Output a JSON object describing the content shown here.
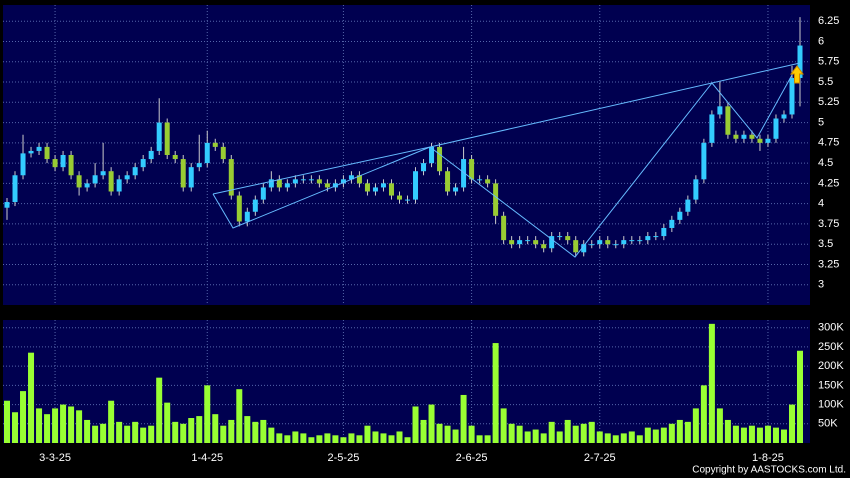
{
  "chart_data": [
    {
      "type": "candlestick",
      "up_color": "#33ccff",
      "down_color": "#99cc33",
      "wick_color": "#cccccc",
      "ylim": [
        2.75,
        6.45
      ],
      "yticks": [
        3,
        3.25,
        3.5,
        3.75,
        4,
        4.25,
        4.5,
        4.75,
        5,
        5.25,
        5.5,
        5.75,
        6,
        6.25
      ],
      "grid": true,
      "open": [
        3.95,
        4.02,
        4.35,
        4.62,
        4.65,
        4.7,
        4.55,
        4.45,
        4.6,
        4.35,
        4.2,
        4.25,
        4.35,
        4.4,
        4.15,
        4.3,
        4.35,
        4.45,
        4.55,
        4.65,
        5.0,
        4.6,
        4.55,
        4.2,
        4.45,
        4.5,
        4.75,
        4.7,
        4.55,
        4.1,
        3.78,
        3.9,
        4.05,
        4.2,
        4.3,
        4.2,
        4.25,
        4.3,
        4.3,
        4.3,
        4.25,
        4.2,
        4.25,
        4.3,
        4.35,
        4.25,
        4.15,
        4.2,
        4.25,
        4.1,
        4.05,
        4.05,
        4.4,
        4.5,
        4.7,
        4.4,
        4.15,
        4.2,
        4.55,
        4.3,
        4.3,
        4.25,
        3.85,
        3.55,
        3.5,
        3.55,
        3.55,
        3.5,
        3.45,
        3.6,
        3.6,
        3.55,
        3.4,
        3.5,
        3.5,
        3.55,
        3.5,
        3.5,
        3.55,
        3.55,
        3.55,
        3.6,
        3.6,
        3.7,
        3.8,
        3.9,
        4.05,
        4.3,
        4.75,
        5.1,
        5.2,
        4.85,
        4.8,
        4.85,
        4.8,
        4.75,
        4.8,
        5.05,
        5.1,
        5.55
      ],
      "close": [
        4.02,
        4.35,
        4.62,
        4.65,
        4.7,
        4.55,
        4.45,
        4.6,
        4.35,
        4.2,
        4.25,
        4.35,
        4.4,
        4.15,
        4.3,
        4.35,
        4.45,
        4.55,
        4.65,
        5.0,
        4.6,
        4.55,
        4.2,
        4.45,
        4.5,
        4.75,
        4.7,
        4.55,
        4.1,
        3.78,
        3.9,
        4.05,
        4.2,
        4.3,
        4.2,
        4.25,
        4.3,
        4.3,
        4.3,
        4.25,
        4.2,
        4.25,
        4.3,
        4.35,
        4.25,
        4.15,
        4.2,
        4.25,
        4.1,
        4.05,
        4.05,
        4.4,
        4.5,
        4.7,
        4.4,
        4.15,
        4.2,
        4.55,
        4.3,
        4.3,
        4.25,
        3.85,
        3.55,
        3.5,
        3.55,
        3.55,
        3.5,
        3.45,
        3.6,
        3.6,
        3.55,
        3.4,
        3.5,
        3.5,
        3.55,
        3.5,
        3.5,
        3.55,
        3.55,
        3.55,
        3.6,
        3.6,
        3.7,
        3.8,
        3.9,
        4.05,
        4.3,
        4.75,
        5.1,
        5.2,
        4.85,
        4.8,
        4.85,
        4.8,
        4.75,
        4.8,
        5.05,
        5.1,
        5.55,
        5.95
      ],
      "high": [
        4.07,
        4.4,
        4.85,
        4.7,
        4.75,
        4.75,
        4.6,
        4.65,
        4.65,
        4.4,
        4.3,
        4.5,
        4.75,
        4.45,
        4.35,
        4.4,
        4.5,
        4.6,
        4.7,
        5.3,
        5.05,
        4.65,
        4.6,
        4.5,
        4.85,
        4.9,
        4.8,
        4.75,
        4.6,
        4.15,
        3.95,
        4.1,
        4.25,
        4.4,
        4.35,
        4.3,
        4.35,
        4.35,
        4.35,
        4.35,
        4.3,
        4.3,
        4.35,
        4.4,
        4.4,
        4.3,
        4.25,
        4.3,
        4.3,
        4.15,
        4.1,
        4.45,
        4.55,
        4.75,
        4.75,
        4.45,
        4.25,
        4.7,
        4.6,
        4.35,
        4.35,
        4.3,
        3.9,
        3.6,
        3.6,
        3.6,
        3.6,
        3.55,
        3.65,
        3.65,
        3.65,
        3.6,
        3.55,
        3.55,
        3.6,
        3.6,
        3.55,
        3.6,
        3.6,
        3.6,
        3.65,
        3.65,
        3.75,
        3.85,
        3.95,
        4.1,
        4.35,
        4.8,
        5.15,
        5.5,
        5.25,
        4.9,
        4.9,
        4.9,
        4.85,
        4.85,
        5.1,
        5.15,
        5.7,
        6.3
      ],
      "low": [
        3.8,
        3.97,
        4.3,
        4.57,
        4.6,
        4.5,
        4.4,
        4.4,
        4.3,
        4.1,
        4.15,
        4.2,
        4.3,
        4.1,
        4.1,
        4.25,
        4.3,
        4.4,
        4.5,
        4.6,
        4.55,
        4.5,
        4.15,
        4.15,
        4.4,
        4.45,
        4.65,
        4.5,
        4.05,
        3.72,
        3.72,
        3.85,
        4.0,
        4.15,
        4.15,
        4.15,
        4.2,
        4.25,
        4.25,
        4.2,
        4.15,
        4.15,
        4.2,
        4.25,
        4.2,
        4.1,
        4.1,
        4.15,
        4.05,
        4.0,
        4.0,
        4.0,
        4.35,
        4.45,
        4.35,
        4.1,
        4.1,
        4.15,
        4.25,
        4.25,
        4.2,
        3.75,
        3.5,
        3.45,
        3.45,
        3.5,
        3.45,
        3.4,
        3.4,
        3.55,
        3.5,
        3.35,
        3.35,
        3.45,
        3.45,
        3.45,
        3.45,
        3.45,
        3.5,
        3.5,
        3.5,
        3.55,
        3.55,
        3.65,
        3.75,
        3.85,
        4.0,
        4.25,
        4.7,
        5.05,
        4.8,
        4.75,
        4.75,
        4.75,
        4.65,
        4.7,
        4.75,
        5.0,
        5.05,
        5.2
      ]
    },
    {
      "type": "bar",
      "color": "#99ff33",
      "ylim": [
        0,
        320000
      ],
      "yticks": [
        {
          "value": 50000,
          "label": "50K"
        },
        {
          "value": 100000,
          "label": "100K"
        },
        {
          "value": 150000,
          "label": "150K"
        },
        {
          "value": 200000,
          "label": "200K"
        },
        {
          "value": 250000,
          "label": "250K"
        },
        {
          "value": 300000,
          "label": "300K"
        }
      ],
      "grid": true,
      "categories": [
        null,
        null,
        null,
        null,
        null,
        null,
        "3-3-25",
        null,
        null,
        null,
        null,
        null,
        null,
        null,
        null,
        null,
        null,
        null,
        null,
        null,
        null,
        null,
        null,
        null,
        null,
        "1-4-25",
        null,
        null,
        null,
        null,
        null,
        null,
        null,
        null,
        null,
        null,
        null,
        null,
        null,
        null,
        null,
        null,
        "2-5-25",
        null,
        null,
        null,
        null,
        null,
        null,
        null,
        null,
        null,
        null,
        null,
        null,
        null,
        null,
        null,
        "2-6-25",
        null,
        null,
        null,
        null,
        null,
        null,
        null,
        null,
        null,
        null,
        null,
        null,
        null,
        null,
        null,
        "2-7-25",
        null,
        null,
        null,
        null,
        null,
        null,
        null,
        null,
        null,
        null,
        null,
        null,
        null,
        null,
        null,
        null,
        null,
        null,
        null,
        null,
        "1-8-25",
        null,
        null,
        null,
        null
      ],
      "values": [
        110000,
        80000,
        135000,
        235000,
        90000,
        75000,
        90000,
        100000,
        95000,
        85000,
        60000,
        45000,
        50000,
        110000,
        55000,
        45000,
        55000,
        40000,
        45000,
        170000,
        105000,
        55000,
        50000,
        65000,
        70000,
        150000,
        75000,
        45000,
        60000,
        140000,
        70000,
        55000,
        60000,
        40000,
        25000,
        20000,
        30000,
        25000,
        15000,
        20000,
        25000,
        20000,
        15000,
        25000,
        20000,
        45000,
        30000,
        25000,
        20000,
        30000,
        15000,
        95000,
        60000,
        100000,
        50000,
        45000,
        35000,
        125000,
        45000,
        20000,
        20000,
        260000,
        90000,
        50000,
        45000,
        30000,
        35000,
        25000,
        55000,
        30000,
        60000,
        45000,
        50000,
        55000,
        30000,
        25000,
        20000,
        25000,
        30000,
        20000,
        40000,
        35000,
        40000,
        50000,
        60000,
        55000,
        90000,
        150000,
        310000,
        90000,
        60000,
        45000,
        40000,
        45000,
        40000,
        45000,
        40000,
        35000,
        100000,
        240000
      ],
      "copyright": "Copyright by AASTOCKS.com Ltd."
    }
  ]
}
